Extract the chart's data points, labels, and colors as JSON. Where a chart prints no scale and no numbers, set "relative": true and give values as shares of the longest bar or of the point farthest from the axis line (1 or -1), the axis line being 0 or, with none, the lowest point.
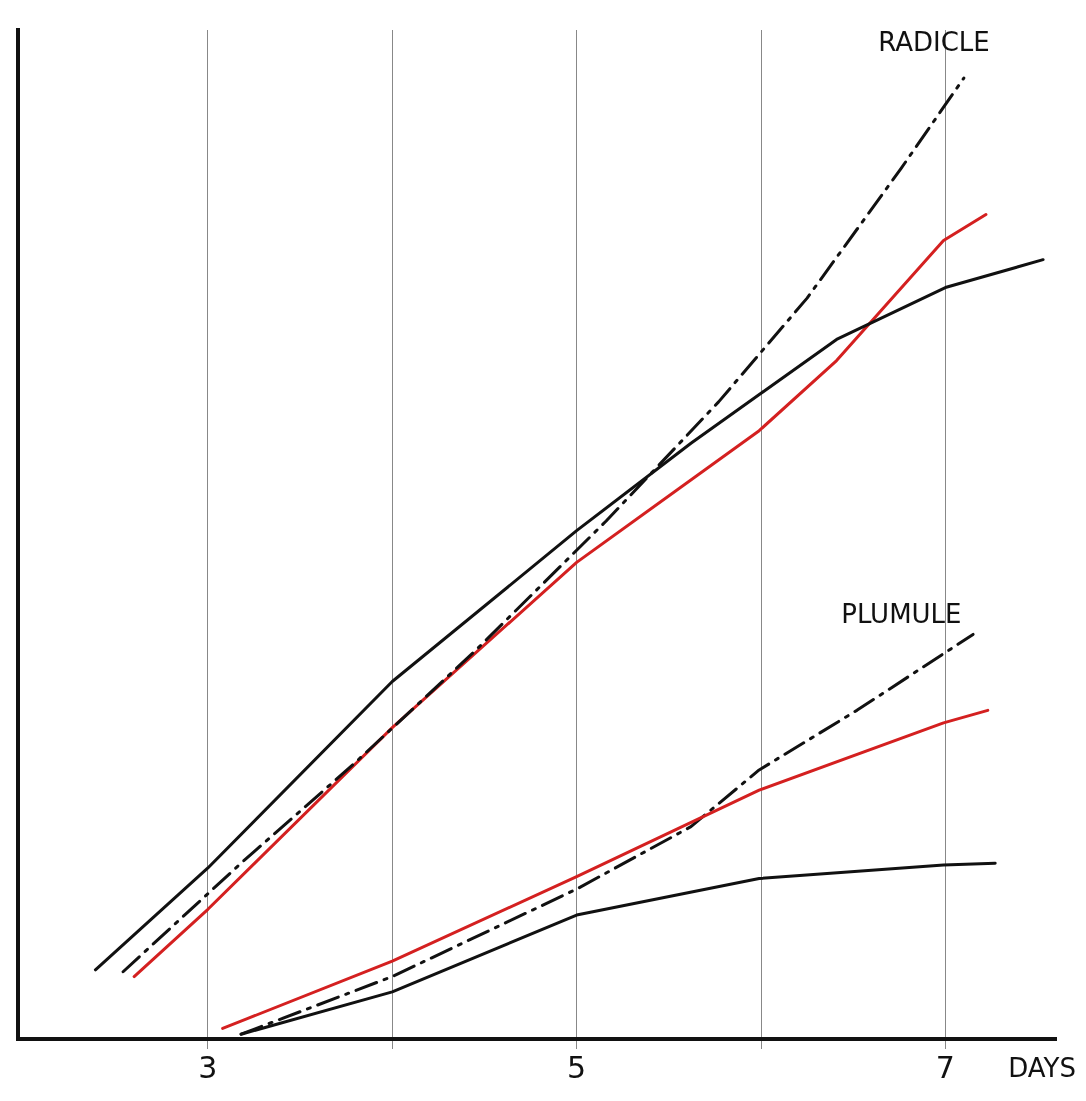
{
  "chart_data": {
    "type": "line",
    "relative": true,
    "xlabel": "DAYS",
    "xlim": [
      1.97,
      7.6
    ],
    "xticks": [
      3,
      {
        "value": 4,
        "label": null
      },
      5,
      {
        "value": 6,
        "label": null
      },
      7
    ],
    "grid": "x",
    "legend": false,
    "marker": "none",
    "annotations": [
      "RADICLE",
      "PLUMULE"
    ],
    "series": [
      {
        "color": "#111111",
        "line_style": "solid",
        "x": [
          2.39,
          3,
          4,
          5,
          5.62,
          6.41,
          7,
          7.53
        ],
        "values": [
          0.072,
          0.178,
          0.372,
          0.529,
          0.62,
          0.728,
          0.782,
          0.811
        ]
      },
      {
        "color": "#111111",
        "line_style": "dashed",
        "x": [
          2.54,
          3.18,
          3.79,
          4.45,
          5.16,
          5.77,
          6.25,
          6.76,
          7.1
        ],
        "values": [
          0.07,
          0.183,
          0.286,
          0.404,
          0.539,
          0.663,
          0.771,
          0.906,
          1.0
        ]
      },
      {
        "color": "#d42020",
        "line_style": "solid",
        "x": [
          2.6,
          3,
          4,
          5,
          5.99,
          6.41,
          6.99,
          7.22
        ],
        "values": [
          0.065,
          0.135,
          0.324,
          0.496,
          0.633,
          0.706,
          0.831,
          0.858
        ]
      },
      {
        "color": "#d42020",
        "line_style": "solid",
        "x": [
          3.08,
          4,
          5,
          5.99,
          6.99,
          7.23
        ],
        "values": [
          0.011,
          0.081,
          0.169,
          0.259,
          0.329,
          0.342
        ]
      },
      {
        "color": "#111111",
        "line_style": "dashed",
        "x": [
          3.18,
          4,
          5,
          5.62,
          5.99,
          6.52,
          7.15
        ],
        "values": [
          0.005,
          0.065,
          0.156,
          0.221,
          0.28,
          0.342,
          0.421
        ]
      },
      {
        "color": "#111111",
        "line_style": "solid",
        "x": [
          3.18,
          4,
          5,
          5.99,
          6.99,
          7.27
        ],
        "values": [
          0.005,
          0.049,
          0.129,
          0.167,
          0.181,
          0.183
        ]
      }
    ]
  }
}
